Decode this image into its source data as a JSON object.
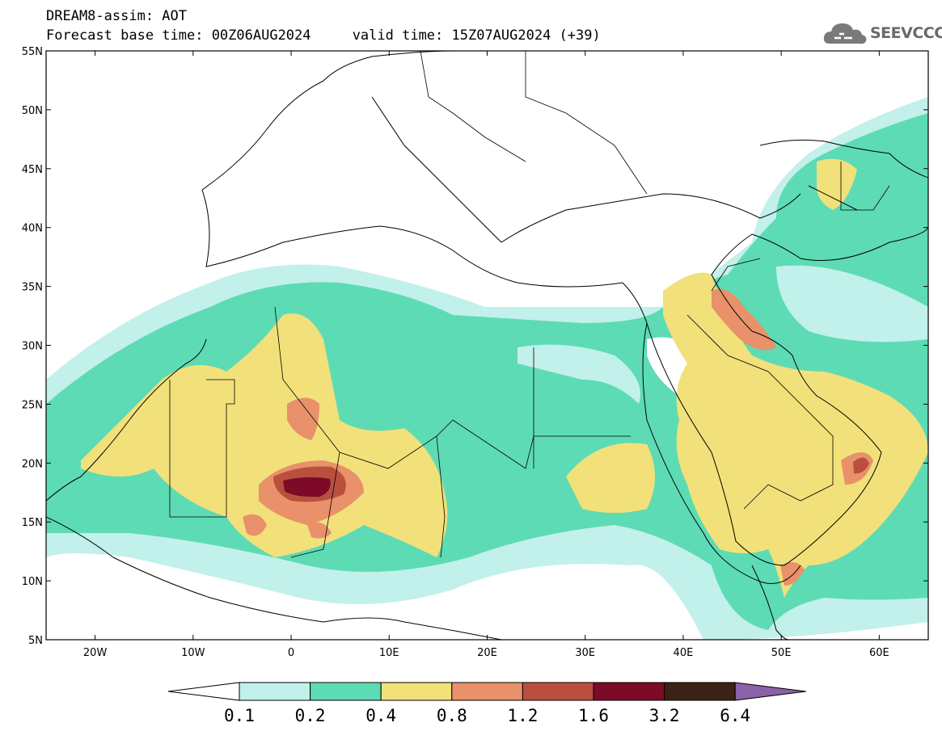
{
  "header": {
    "line1": "DREAM8-assim: AOT",
    "line2": "Forecast base time: 00Z06AUG2024     valid time: 15Z07AUG2024 (+39)"
  },
  "logo": {
    "text": "SEEVCCC",
    "icon": "cloud-icon"
  },
  "map": {
    "lon_range": [
      -25,
      65
    ],
    "lat_range": [
      5,
      55
    ],
    "lat_ticks": [
      "5N",
      "10N",
      "15N",
      "20N",
      "25N",
      "30N",
      "35N",
      "40N",
      "45N",
      "50N",
      "55N"
    ],
    "lon_ticks": [
      "20W",
      "10W",
      "0",
      "10E",
      "20E",
      "30E",
      "40E",
      "50E",
      "60E"
    ],
    "lat_tick_values": [
      5,
      10,
      15,
      20,
      25,
      30,
      35,
      40,
      45,
      50,
      55
    ],
    "lon_tick_values": [
      -20,
      -10,
      0,
      10,
      20,
      30,
      40,
      50,
      60
    ]
  },
  "colorbar": {
    "labels": [
      "0.1",
      "0.2",
      "0.4",
      "0.8",
      "1.2",
      "1.6",
      "3.2",
      "6.4"
    ],
    "colors": [
      "#c2f0ea",
      "#5ddbb5",
      "#f2e07a",
      "#e8916a",
      "#b9503e",
      "#7d0a28",
      "#3c2214",
      "#8a62a8"
    ],
    "below_color": "#ffffff"
  }
}
